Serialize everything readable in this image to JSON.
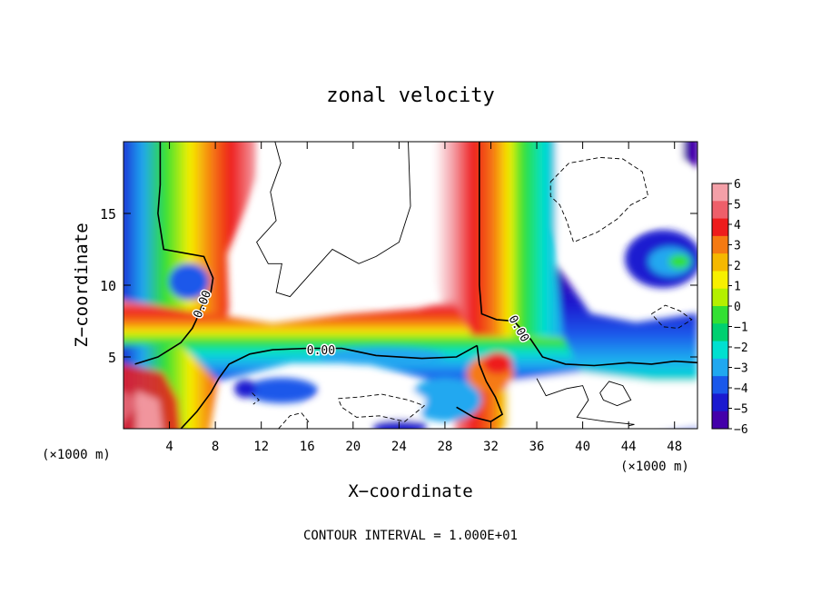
{
  "chart_data": {
    "type": "heatmap",
    "title": "zonal velocity",
    "xlabel": "X−coordinate",
    "ylabel": "Z−coordinate",
    "x_unit_left": "(×1000 m)",
    "x_unit_right": "(×1000 m)",
    "footer": "CONTOUR INTERVAL = 1.000E+01",
    "xlim": [
      0,
      50
    ],
    "ylim": [
      0,
      20
    ],
    "x_ticks": [
      {
        "value": 4,
        "label": "4"
      },
      {
        "value": 8,
        "label": "8"
      },
      {
        "value": 12,
        "label": "12"
      },
      {
        "value": 16,
        "label": "16"
      },
      {
        "value": 20,
        "label": "20"
      },
      {
        "value": 24,
        "label": "24"
      },
      {
        "value": 28,
        "label": "28"
      },
      {
        "value": 32,
        "label": "32"
      },
      {
        "value": 36,
        "label": "36"
      },
      {
        "value": 40,
        "label": "40"
      },
      {
        "value": 44,
        "label": "44"
      },
      {
        "value": 48,
        "label": "48"
      }
    ],
    "y_ticks": [
      {
        "value": 5,
        "label": "5"
      },
      {
        "value": 10,
        "label": "10"
      },
      {
        "value": 15,
        "label": "15"
      }
    ],
    "colorbar": {
      "range": [
        -6,
        6
      ],
      "labels": [
        "6",
        "5",
        "4",
        "3",
        "2",
        "1",
        "0",
        "−1",
        "−2",
        "−3",
        "−4",
        "−5",
        "−6"
      ],
      "colors": [
        "#f4a0a8",
        "#ee5f6a",
        "#ee1c1c",
        "#f57a12",
        "#f5b800",
        "#f7f000",
        "#b4f000",
        "#33e033",
        "#00d070",
        "#00e0d0",
        "#20a8f0",
        "#1a58ea",
        "#1a1ad0",
        "#4400aa"
      ]
    },
    "contour_labels": [
      {
        "text": "0.00",
        "x": 6.8,
        "z": 8.7,
        "angle": -68
      },
      {
        "text": "0.00",
        "x": 17.2,
        "z": 5.5,
        "angle": 0
      },
      {
        "text": "0.00",
        "x": 34.5,
        "z": 7.0,
        "angle": 60
      }
    ],
    "zero_contours": [
      [
        [
          1,
          4.5
        ],
        [
          3,
          5.0
        ],
        [
          5,
          6.0
        ],
        [
          6,
          7.0
        ],
        [
          6.3,
          7.5
        ],
        [
          6.8,
          8.5
        ],
        [
          7.6,
          9.5
        ],
        [
          7.8,
          10.5
        ],
        [
          7.0,
          12.0
        ],
        [
          3.5,
          12.5
        ],
        [
          3.0,
          15.0
        ],
        [
          3.2,
          17.0
        ],
        [
          3.2,
          20
        ]
      ],
      [
        [
          5.0,
          0
        ],
        [
          6.4,
          1.2
        ],
        [
          7.6,
          2.5
        ],
        [
          8.3,
          3.5
        ],
        [
          9.2,
          4.5
        ],
        [
          11,
          5.2
        ],
        [
          13,
          5.5
        ],
        [
          16,
          5.6
        ],
        [
          19,
          5.6
        ],
        [
          22,
          5.1
        ],
        [
          26,
          4.9
        ],
        [
          29,
          5.0
        ],
        [
          30.8,
          5.8
        ]
      ],
      [
        [
          31.0,
          20
        ],
        [
          31.0,
          10
        ],
        [
          31.2,
          8.0
        ],
        [
          32.5,
          7.6
        ],
        [
          34.0,
          7.5
        ],
        [
          35.5,
          6.2
        ],
        [
          36.5,
          5.0
        ],
        [
          38.5,
          4.5
        ],
        [
          41,
          4.4
        ],
        [
          44,
          4.6
        ],
        [
          46,
          4.5
        ],
        [
          48,
          4.7
        ],
        [
          50,
          4.6
        ]
      ],
      [
        [
          30.8,
          5.8
        ],
        [
          31.0,
          4.5
        ],
        [
          31.6,
          3.3
        ],
        [
          32.4,
          2.2
        ],
        [
          33.0,
          1.0
        ],
        [
          32.0,
          0.5
        ],
        [
          30.5,
          0.8
        ],
        [
          29.0,
          1.5
        ]
      ]
    ],
    "thin_contours": [
      [
        [
          13.2,
          20
        ],
        [
          13.7,
          18.5
        ],
        [
          12.8,
          16.5
        ],
        [
          13.3,
          14.5
        ],
        [
          11.6,
          13.0
        ],
        [
          12.6,
          11.5
        ],
        [
          13.8,
          11.5
        ],
        [
          13.3,
          9.5
        ],
        [
          14.5,
          9.2
        ],
        [
          16.5,
          11.0
        ],
        [
          18.2,
          12.5
        ],
        [
          20.5,
          11.5
        ],
        [
          22.0,
          12.0
        ],
        [
          24.0,
          13.0
        ],
        [
          25.0,
          15.5
        ],
        [
          24.8,
          20
        ]
      ],
      [
        [
          36.0,
          3.5
        ],
        [
          36.8,
          2.3
        ],
        [
          38.6,
          2.8
        ],
        [
          40.0,
          3.0
        ],
        [
          40.5,
          2.0
        ],
        [
          39.5,
          0.8
        ],
        [
          42.0,
          0.5
        ],
        [
          44.5,
          0.3
        ],
        [
          44.0,
          0.2
        ]
      ],
      [
        [
          41.5,
          2.5
        ],
        [
          42.3,
          3.3
        ],
        [
          43.5,
          3.0
        ],
        [
          44.2,
          2.0
        ],
        [
          43.0,
          1.6
        ],
        [
          41.8,
          2.0
        ],
        [
          41.5,
          2.5
        ]
      ]
    ],
    "dashed_contours": [
      [
        [
          37.2,
          17.2
        ],
        [
          38.8,
          18.5
        ],
        [
          41.5,
          18.9
        ],
        [
          43.5,
          18.8
        ],
        [
          45.2,
          17.9
        ],
        [
          45.7,
          16.2
        ],
        [
          44.2,
          15.6
        ],
        [
          43.0,
          14.6
        ],
        [
          41.3,
          13.7
        ],
        [
          39.2,
          13.0
        ],
        [
          38.6,
          14.5
        ],
        [
          38.0,
          15.6
        ],
        [
          37.2,
          16.2
        ],
        [
          37.2,
          17.2
        ]
      ],
      [
        [
          18.7,
          2.1
        ],
        [
          20.5,
          2.2
        ],
        [
          22.5,
          2.4
        ],
        [
          24.8,
          2.0
        ],
        [
          26.2,
          1.6
        ],
        [
          24.5,
          0.5
        ],
        [
          22.3,
          0.9
        ],
        [
          20.3,
          0.8
        ],
        [
          19.0,
          1.5
        ],
        [
          18.7,
          2.1
        ]
      ],
      [
        [
          13.5,
          0.0
        ],
        [
          14.5,
          0.9
        ],
        [
          15.5,
          1.1
        ],
        [
          16.2,
          0.4
        ]
      ],
      [
        [
          46.0,
          8.0
        ],
        [
          47.2,
          8.6
        ],
        [
          48.5,
          8.2
        ],
        [
          49.5,
          7.6
        ],
        [
          48.3,
          7.0
        ],
        [
          47.0,
          7.1
        ],
        [
          46.0,
          8.0
        ]
      ],
      [
        [
          11.2,
          2.5
        ],
        [
          11.8,
          2.0
        ],
        [
          11.3,
          1.7
        ]
      ]
    ]
  }
}
